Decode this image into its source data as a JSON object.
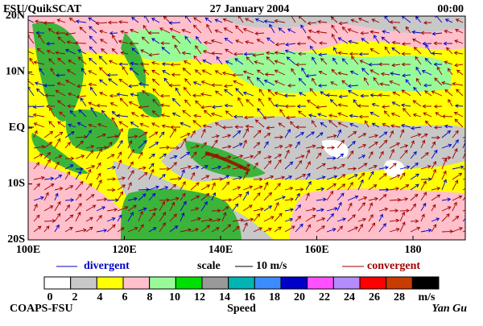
{
  "header": {
    "left": "FSU/QuikSCAT",
    "center": "27 January 2004",
    "right": "00:00"
  },
  "map": {
    "lat_ticks": [
      "20N",
      "10N",
      "EQ",
      "10S",
      "20S"
    ],
    "lon_ticks": [
      "100E",
      "120E",
      "140E",
      "160E",
      "180"
    ]
  },
  "legend": {
    "divergent": "divergent",
    "scale": "scale",
    "scale_value": "10 m/s",
    "convergent": "convergent"
  },
  "colorbar": {
    "ticks": [
      0,
      2,
      4,
      6,
      8,
      10,
      12,
      14,
      16,
      18,
      20,
      22,
      24,
      26,
      28
    ],
    "unit": "m/s",
    "label": "Speed",
    "colors": [
      "#ffffff",
      "#c8c8c8",
      "#ffff00",
      "#ffc0cb",
      "#98fb98",
      "#00e000",
      "#999999",
      "#00b4b4",
      "#3c8cff",
      "#0000c8",
      "#ff50ff",
      "#b48cff",
      "#ff0000",
      "#c83c00",
      "#000000"
    ]
  },
  "footer": {
    "left": "COAPS-FSU",
    "right": "Yan Gu"
  }
}
